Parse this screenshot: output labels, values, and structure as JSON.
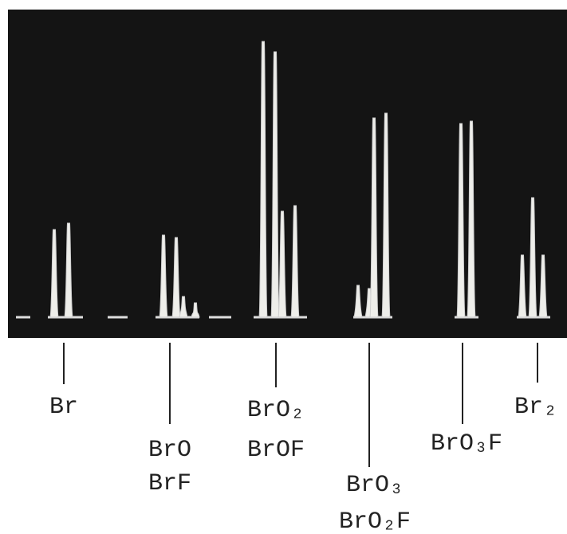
{
  "labels": [
    {
      "lines": [
        "Br"
      ]
    },
    {
      "lines": [
        "BrO",
        "BrF"
      ]
    },
    {
      "lines": [
        "BrO₂",
        "BrOF"
      ]
    },
    {
      "lines": [
        "BrO₃",
        "BrO₂F"
      ]
    },
    {
      "lines": [
        "BrO₃F"
      ]
    },
    {
      "lines": [
        "Br₂"
      ]
    }
  ]
}
